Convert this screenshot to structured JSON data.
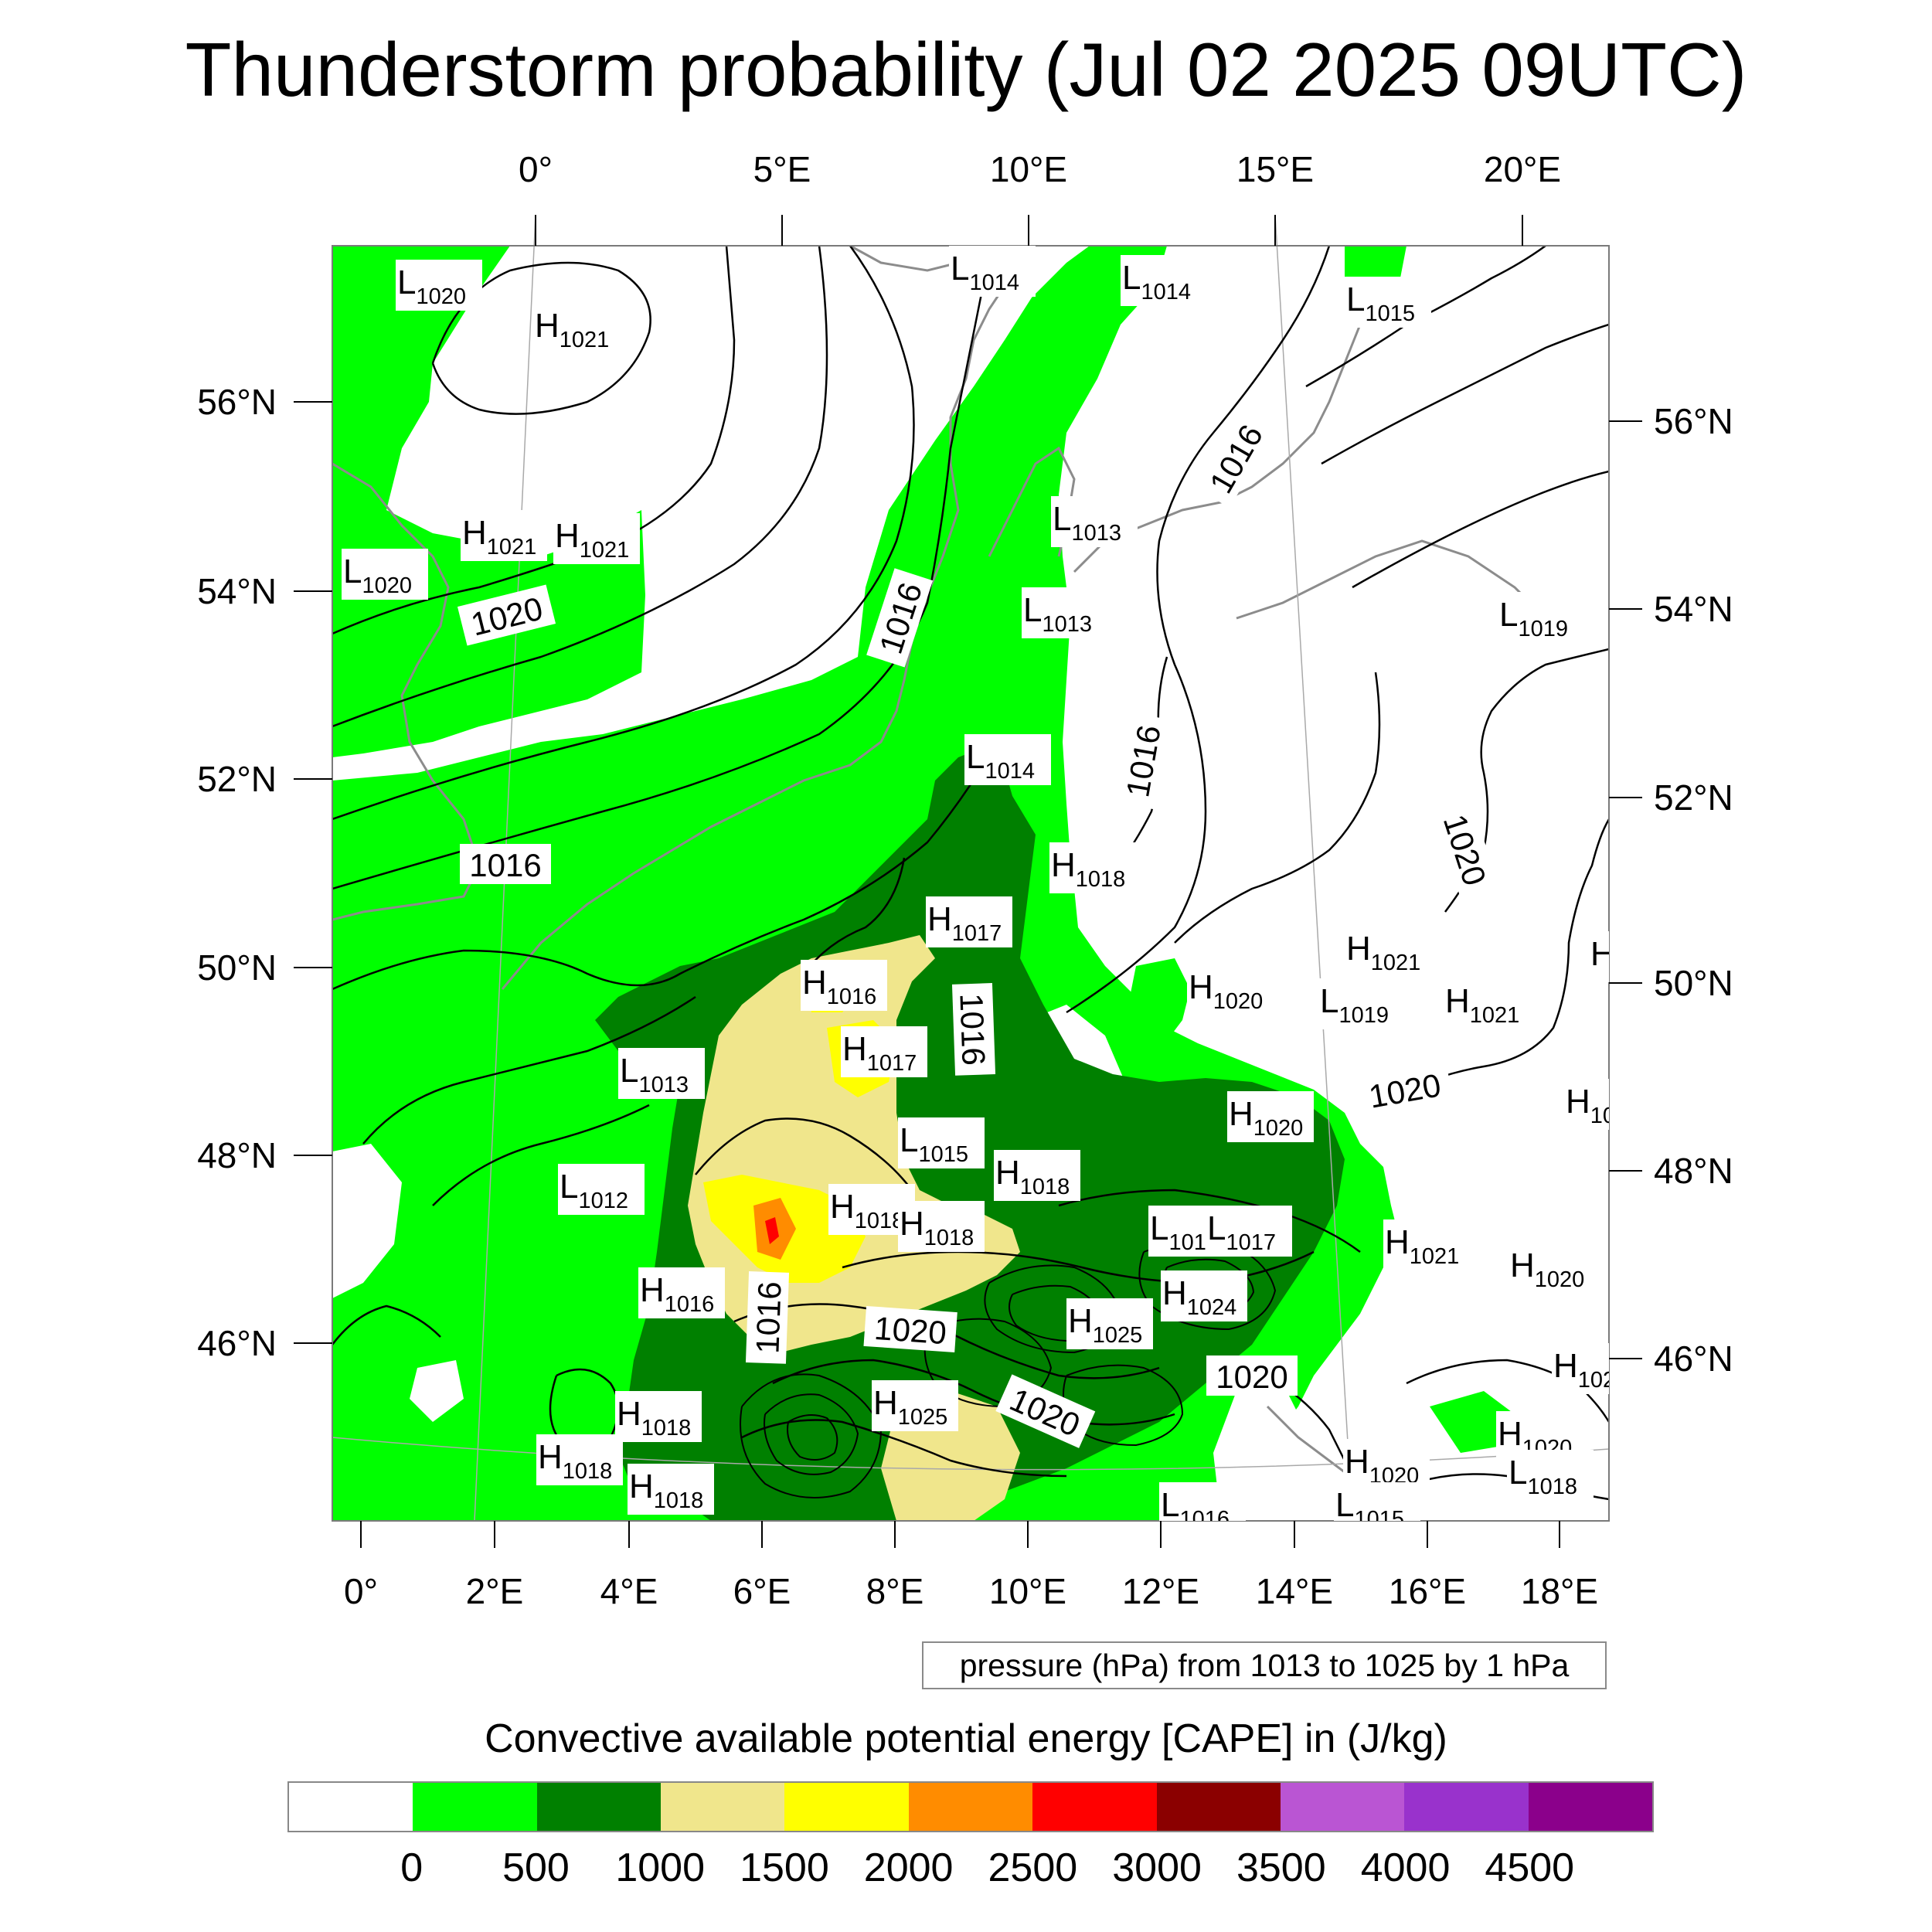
{
  "title": "Thunderstorm probability (Jul 02 2025 09UTC)",
  "axes": {
    "top_lon_labels": [
      "0°",
      "5°E",
      "10°E",
      "15°E",
      "20°E"
    ],
    "bottom_lon_labels": [
      "0°",
      "2°E",
      "4°E",
      "6°E",
      "8°E",
      "10°E",
      "12°E",
      "14°E",
      "16°E",
      "18°E"
    ],
    "left_lat_labels": [
      "56°N",
      "54°N",
      "52°N",
      "50°N",
      "48°N",
      "46°N"
    ],
    "right_lat_labels": [
      "56°N",
      "54°N",
      "52°N",
      "50°N",
      "48°N",
      "46°N"
    ]
  },
  "contour_info": "pressure (hPa) from 1013 to 1025 by 1 hPa",
  "colorbar": {
    "title": "Convective available potential energy [CAPE] in (J/kg)",
    "tick_labels": [
      "0",
      "500",
      "1000",
      "1500",
      "2000",
      "2500",
      "3000",
      "3500",
      "4000",
      "4500"
    ],
    "colors": [
      "#ffffff",
      "#00ff00",
      "#008000",
      "#f0e68c",
      "#ffff00",
      "#ff8c00",
      "#ff0000",
      "#8b0000",
      "#ba55d3",
      "#9932cc",
      "#8b008b"
    ]
  },
  "pressure_centers": [
    {
      "type": "L",
      "value": "1020"
    },
    {
      "type": "H",
      "value": "1021"
    },
    {
      "type": "L",
      "value": "1014"
    },
    {
      "type": "L",
      "value": "1014"
    },
    {
      "type": "L",
      "value": "1015"
    },
    {
      "type": "H",
      "value": "1021"
    },
    {
      "type": "H",
      "value": "1021"
    },
    {
      "type": "L",
      "value": "1020"
    },
    {
      "type": "L",
      "value": "1013"
    },
    {
      "type": "L",
      "value": "1013"
    },
    {
      "type": "L",
      "value": "1019"
    },
    {
      "type": "L",
      "value": "1014"
    },
    {
      "type": "H",
      "value": "1018"
    },
    {
      "type": "H",
      "value": "1017"
    },
    {
      "type": "H",
      "value": "1021"
    },
    {
      "type": "H",
      "value": "1016"
    },
    {
      "type": "H",
      "value": "1020"
    },
    {
      "type": "L",
      "value": "1019"
    },
    {
      "type": "H",
      "value": "1021"
    },
    {
      "type": "H",
      "value": "1017"
    },
    {
      "type": "L",
      "value": "1013"
    },
    {
      "type": "H",
      "value": "1020"
    },
    {
      "type": "L",
      "value": "1015"
    },
    {
      "type": "H",
      "value": "1018"
    },
    {
      "type": "L",
      "value": "1012"
    },
    {
      "type": "H",
      "value": "1018"
    },
    {
      "type": "H",
      "value": "1018"
    },
    {
      "type": "L",
      "value": "101"
    },
    {
      "type": "L",
      "value": "1017"
    },
    {
      "type": "H",
      "value": "1021"
    },
    {
      "type": "H",
      "value": "1020"
    },
    {
      "type": "H",
      "value": "1016"
    },
    {
      "type": "H",
      "value": "1024"
    },
    {
      "type": "H",
      "value": "1025"
    },
    {
      "type": "H",
      "value": "1025"
    },
    {
      "type": "H",
      "value": "1018"
    },
    {
      "type": "H",
      "value": "1018"
    },
    {
      "type": "H",
      "value": "1018"
    },
    {
      "type": "H",
      "value": "1020"
    },
    {
      "type": "H",
      "value": "1020"
    },
    {
      "type": "L",
      "value": "1018"
    },
    {
      "type": "L",
      "value": "1016"
    },
    {
      "type": "L",
      "value": "1015"
    },
    {
      "type": "H",
      "value": "1"
    },
    {
      "type": "H",
      "value": "10"
    },
    {
      "type": "H",
      "value": "102"
    }
  ],
  "isobar_labels": [
    "1016",
    "1020",
    "1016",
    "1016",
    "1016",
    "1020",
    "1016",
    "1016",
    "1020",
    "1020",
    "1020",
    "1020"
  ]
}
